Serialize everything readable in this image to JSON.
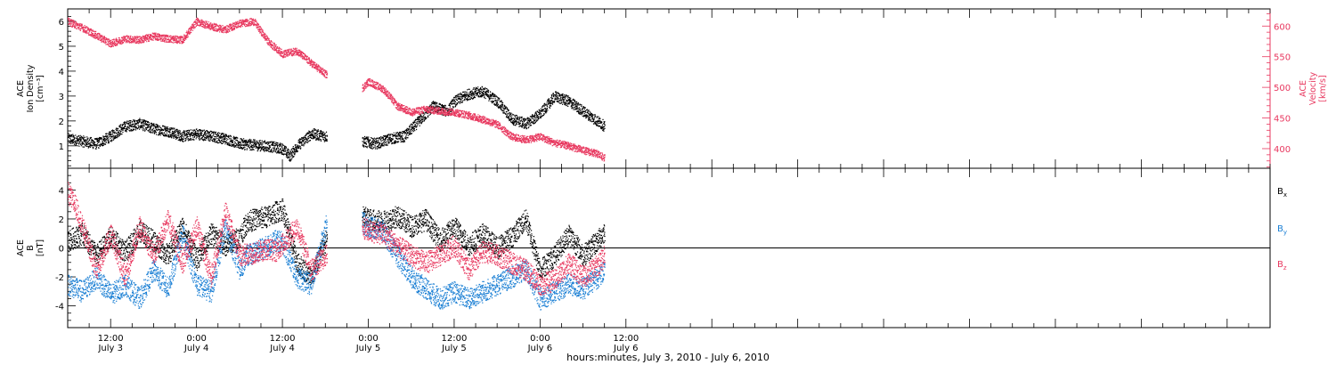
{
  "chart_data": [
    {
      "type": "scatter",
      "panel": "top",
      "x_unit": "hours since 2010-07-03 00:00",
      "x_range": [
        6,
        174
      ],
      "x_ticks": [
        {
          "x": 12,
          "time": "12:00",
          "day": "July 3"
        },
        {
          "x": 24,
          "time": "0:00",
          "day": "July 4"
        },
        {
          "x": 36,
          "time": "12:00",
          "day": "July 4"
        },
        {
          "x": 48,
          "time": "0:00",
          "day": "July 5"
        },
        {
          "x": 60,
          "time": "12:00",
          "day": "July 5"
        },
        {
          "x": 72,
          "time": "0:00",
          "day": "July 6"
        },
        {
          "x": 84,
          "time": "12:00",
          "day": "July 6"
        }
      ],
      "xlabel": "hours:minutes, July  3, 2010 - July  6, 2010",
      "data_gap": [
        42.2,
        47.1
      ],
      "left_axis": {
        "label_lines": [
          "ACE",
          "Ion Density",
          "[cm⁻³]"
        ],
        "range": [
          0.1,
          6.5
        ],
        "ticks": [
          1,
          2,
          3,
          4,
          5,
          6
        ],
        "color": "#000000"
      },
      "right_axis": {
        "label_lines": [
          "ACE",
          "Velocity",
          "[km/s]"
        ],
        "range": [
          368,
          628
        ],
        "ticks": [
          400,
          450,
          500,
          550,
          600
        ],
        "color": "#e8385f"
      },
      "series": [
        {
          "key": "density",
          "axis": "left",
          "color": "#000000",
          "x": [
            6,
            8,
            10,
            12,
            14,
            16,
            18,
            20,
            22,
            24,
            26,
            28,
            30,
            32,
            34,
            36,
            37,
            38,
            40,
            42,
            47,
            49,
            51,
            53,
            55,
            57,
            59,
            60,
            62,
            64,
            66,
            68,
            70,
            72,
            74,
            76,
            78,
            80,
            81
          ],
          "y": [
            1.3,
            1.2,
            1.1,
            1.4,
            1.8,
            1.9,
            1.7,
            1.6,
            1.4,
            1.5,
            1.4,
            1.3,
            1.1,
            1.05,
            1.0,
            0.9,
            0.6,
            1.0,
            1.5,
            1.4,
            1.2,
            1.1,
            1.3,
            1.4,
            2.0,
            2.6,
            2.4,
            2.8,
            3.1,
            3.2,
            2.8,
            2.1,
            1.9,
            2.3,
            3.0,
            2.8,
            2.4,
            2.0,
            1.8
          ]
        },
        {
          "key": "velocity",
          "axis": "right",
          "color": "#e8385f",
          "x": [
            6,
            8,
            10,
            12,
            14,
            16,
            18,
            20,
            22,
            24,
            26,
            28,
            30,
            32,
            34,
            36,
            38,
            40,
            42,
            47,
            48,
            50,
            51,
            52,
            54,
            56,
            58,
            60,
            62,
            64,
            66,
            68,
            70,
            72,
            74,
            76,
            78,
            80,
            81
          ],
          "y": [
            608,
            598,
            585,
            572,
            580,
            578,
            584,
            580,
            578,
            608,
            600,
            595,
            605,
            608,
            575,
            555,
            560,
            540,
            522,
            498,
            510,
            498,
            485,
            470,
            460,
            465,
            462,
            460,
            455,
            448,
            440,
            420,
            415,
            420,
            410,
            405,
            398,
            392,
            385
          ]
        }
      ]
    },
    {
      "type": "scatter",
      "panel": "bottom",
      "x_unit": "hours since 2010-07-03 00:00",
      "x_range": [
        6,
        174
      ],
      "data_gap": [
        42.2,
        47.1
      ],
      "left_axis": {
        "label_lines": [
          "ACE",
          "B",
          "[nT]"
        ],
        "range": [
          -5.5,
          5.5
        ],
        "ticks": [
          -4,
          -2,
          0,
          2,
          4
        ],
        "color": "#000000"
      },
      "zero_line": true,
      "legend": [
        {
          "label": "B",
          "sub": "x",
          "color": "#000000"
        },
        {
          "label": "B",
          "sub": "y",
          "color": "#1a7fd4"
        },
        {
          "label": "B",
          "sub": "z",
          "color": "#e8385f"
        }
      ],
      "legend_placement": "right",
      "series": [
        {
          "key": "bx",
          "color": "#000000",
          "x": [
            6,
            8,
            10,
            12,
            14,
            16,
            18,
            20,
            22,
            24,
            26,
            28,
            30,
            31,
            32,
            34,
            35,
            36,
            38,
            40,
            42,
            47,
            48,
            50,
            52,
            54,
            56,
            58,
            60,
            62,
            64,
            66,
            68,
            70,
            72,
            74,
            76,
            78,
            80,
            81
          ],
          "y": [
            0.5,
            1.0,
            -0.5,
            0.8,
            -0.3,
            1.2,
            0.5,
            -0.5,
            1.5,
            -0.8,
            1.0,
            0.2,
            0.8,
            1.8,
            2.0,
            2.2,
            2.5,
            2.7,
            -1.0,
            -2.0,
            0.5,
            2.2,
            2.0,
            1.8,
            2.2,
            1.5,
            2.0,
            0.5,
            1.5,
            0.2,
            1.0,
            0.0,
            0.8,
            2.0,
            -1.5,
            -0.5,
            1.0,
            -0.5,
            0.5,
            1.2
          ]
        },
        {
          "key": "by",
          "color": "#1a7fd4",
          "x": [
            6,
            8,
            10,
            12,
            14,
            16,
            18,
            20,
            22,
            24,
            26,
            28,
            30,
            31,
            32,
            34,
            35,
            36,
            38,
            40,
            42,
            47,
            48,
            50,
            52,
            54,
            56,
            58,
            60,
            62,
            64,
            66,
            68,
            70,
            72,
            74,
            76,
            78,
            80,
            81
          ],
          "y": [
            -2.5,
            -3.0,
            -2.0,
            -3.2,
            -2.5,
            -3.5,
            -1.5,
            -2.8,
            1.0,
            -2.5,
            -3.0,
            1.5,
            -1.5,
            -0.5,
            -0.3,
            0.2,
            0.5,
            0.4,
            -2.0,
            -2.5,
            1.5,
            1.8,
            1.5,
            1.2,
            -0.5,
            -2.0,
            -2.8,
            -3.5,
            -3.0,
            -3.5,
            -3.0,
            -2.5,
            -2.0,
            -1.5,
            -3.5,
            -3.0,
            -2.5,
            -2.8,
            -2.0,
            -1.5
          ]
        },
        {
          "key": "bz",
          "color": "#e8385f",
          "x": [
            6,
            7,
            8,
            10,
            12,
            14,
            16,
            18,
            20,
            22,
            24,
            26,
            28,
            30,
            32,
            34,
            35,
            36,
            38,
            40,
            42,
            47,
            48,
            50,
            52,
            54,
            56,
            58,
            60,
            62,
            64,
            66,
            68,
            70,
            72,
            74,
            76,
            78,
            80,
            81
          ],
          "y": [
            3.8,
            3.0,
            1.5,
            -1.5,
            1.0,
            -2.0,
            1.5,
            -0.5,
            2.0,
            -1.0,
            1.5,
            -2.0,
            2.5,
            -0.5,
            -0.3,
            0.0,
            -0.2,
            0.3,
            1.5,
            -1.5,
            -0.5,
            1.5,
            1.2,
            1.0,
            0.2,
            -0.5,
            -1.0,
            -0.5,
            0.2,
            -1.5,
            -0.2,
            -0.5,
            -1.0,
            -1.5,
            -2.5,
            -2.2,
            -1.0,
            -2.0,
            -1.2,
            -0.5
          ]
        }
      ]
    }
  ]
}
